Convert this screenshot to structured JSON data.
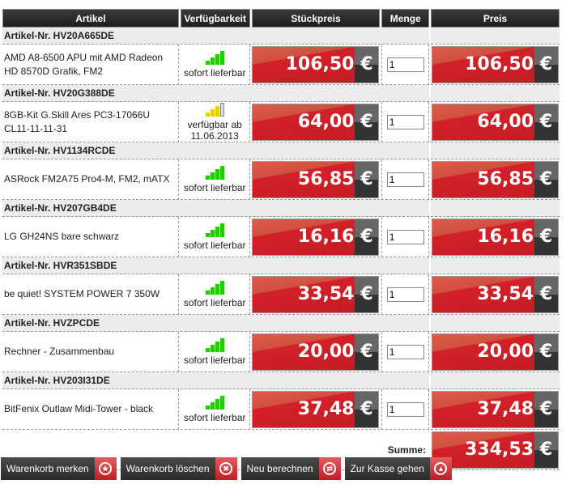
{
  "headers": [
    "Artikel",
    "Verfügbarkeit",
    "Stückpreis",
    "Menge",
    "Preis"
  ],
  "currency": "€",
  "items": [
    {
      "nr": "Artikel-Nr. HV20A665DE",
      "name": "AMD A8-6500 APU mit AMD Radeon HD 8570D Grafik, FM2",
      "availability": "sofort lieferbar",
      "level": 4,
      "status_color": "#22cc00",
      "unit_price": "106,50",
      "qty": "1",
      "price": "106,50"
    },
    {
      "nr": "Artikel-Nr. HV20G388DE",
      "name": "8GB-Kit G.Skill Ares PC3-17066U CL11-11-11-31",
      "availability": "verfügbar ab 11.06.2013",
      "level": 3,
      "status_color": "#e8d000",
      "unit_price": "64,00",
      "qty": "1",
      "price": "64,00"
    },
    {
      "nr": "Artikel-Nr. HV1134RCDE",
      "name": "ASRock FM2A75 Pro4-M, FM2, mATX",
      "availability": "sofort lieferbar",
      "level": 4,
      "status_color": "#22cc00",
      "unit_price": "56,85",
      "qty": "1",
      "price": "56,85"
    },
    {
      "nr": "Artikel-Nr. HV207GB4DE",
      "name": "LG GH24NS bare schwarz",
      "availability": "sofort lieferbar",
      "level": 4,
      "status_color": "#22cc00",
      "unit_price": "16,16",
      "qty": "1",
      "price": "16,16"
    },
    {
      "nr": "Artikel-Nr. HVR351SBDE",
      "name": "be quiet! SYSTEM POWER 7 350W",
      "availability": "sofort lieferbar",
      "level": 4,
      "status_color": "#22cc00",
      "unit_price": "33,54",
      "qty": "1",
      "price": "33,54"
    },
    {
      "nr": "Artikel-Nr. HVZPCDE",
      "name": "Rechner - Zusammenbau",
      "availability": "sofort lieferbar",
      "level": 4,
      "status_color": "#22cc00",
      "unit_price": "20,00",
      "qty": "1",
      "price": "20,00"
    },
    {
      "nr": "Artikel-Nr. HV203I31DE",
      "name": "BitFenix Outlaw Midi-Tower - black",
      "availability": "sofort lieferbar",
      "level": 4,
      "status_color": "#22cc00",
      "unit_price": "37,48",
      "qty": "1",
      "price": "37,48"
    }
  ],
  "sum": {
    "label": "Summe:",
    "value": "334,53"
  },
  "buttons": [
    {
      "label": "Warenkorb merken",
      "icon": "star-icon",
      "glyph": "★"
    },
    {
      "label": "Warenkorb löschen",
      "icon": "close-icon",
      "glyph": "✖"
    },
    {
      "label": "Neu berechnen",
      "icon": "refresh-icon",
      "glyph": "⇄"
    },
    {
      "label": "Zur Kasse gehen",
      "icon": "checkout-icon",
      "glyph": "▲"
    }
  ]
}
